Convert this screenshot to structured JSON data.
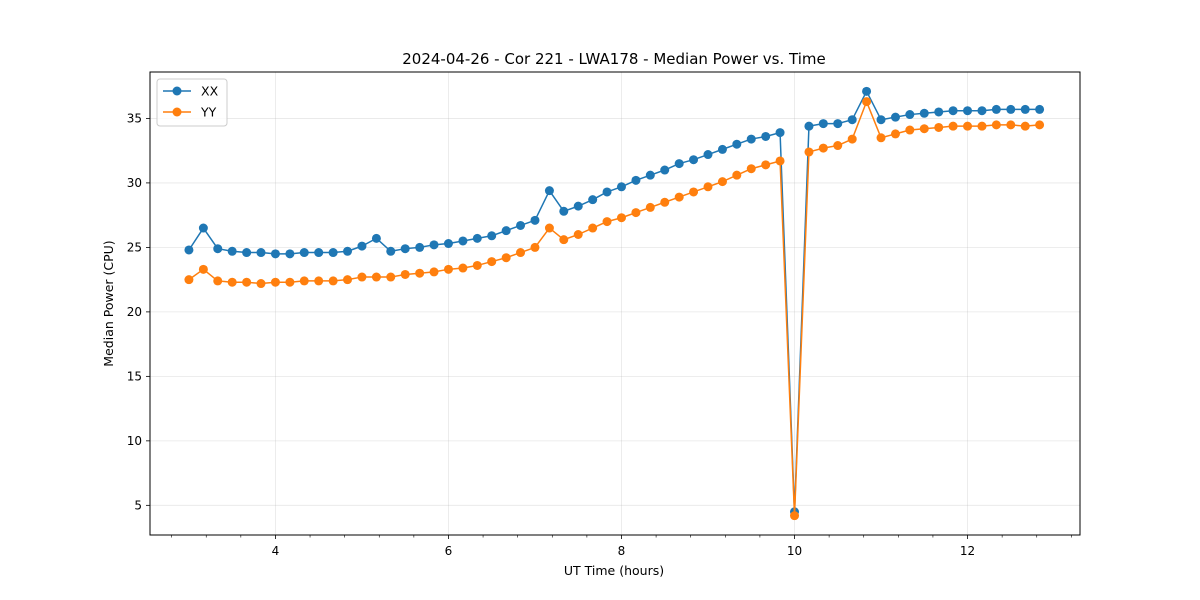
{
  "chart_data": {
    "type": "line",
    "title": "2024-04-26 - Cor 221 - LWA178 - Median Power vs. Time",
    "xlabel": "UT Time (hours)",
    "ylabel": "Median Power (CPU)",
    "xlim": [
      2.55,
      13.3
    ],
    "ylim": [
      2.7,
      38.6
    ],
    "xticks": [
      4,
      6,
      8,
      10,
      12
    ],
    "xtick_labels": [
      "4",
      "6",
      "8",
      "10",
      "12"
    ],
    "xminor_step": 0.4,
    "yticks": [
      5,
      10,
      15,
      20,
      25,
      30,
      35
    ],
    "ytick_labels": [
      "5",
      "10",
      "15",
      "20",
      "25",
      "30",
      "35"
    ],
    "grid": true,
    "legend_position": "top-left",
    "x": [
      3.0,
      3.167,
      3.333,
      3.5,
      3.667,
      3.833,
      4.0,
      4.167,
      4.333,
      4.5,
      4.667,
      4.833,
      5.0,
      5.167,
      5.333,
      5.5,
      5.667,
      5.833,
      6.0,
      6.167,
      6.333,
      6.5,
      6.667,
      6.833,
      7.0,
      7.167,
      7.333,
      7.5,
      7.667,
      7.833,
      8.0,
      8.167,
      8.333,
      8.5,
      8.667,
      8.833,
      9.0,
      9.167,
      9.333,
      9.5,
      9.667,
      9.833,
      10.0,
      10.167,
      10.333,
      10.5,
      10.667,
      10.833,
      11.0,
      11.167,
      11.333,
      11.5,
      11.667,
      11.833,
      12.0,
      12.167,
      12.333,
      12.5,
      12.667,
      12.833
    ],
    "series": [
      {
        "name": "XX",
        "color": "#1f77b4",
        "values": [
          24.8,
          26.5,
          24.9,
          24.7,
          24.6,
          24.6,
          24.5,
          24.5,
          24.6,
          24.6,
          24.6,
          24.7,
          25.1,
          25.7,
          24.7,
          24.9,
          25.0,
          25.2,
          25.3,
          25.5,
          25.7,
          25.9,
          26.3,
          26.7,
          27.1,
          29.4,
          27.8,
          28.2,
          28.7,
          29.3,
          29.7,
          30.2,
          30.6,
          31.0,
          31.5,
          31.8,
          32.2,
          32.6,
          33.0,
          33.4,
          33.6,
          33.9,
          4.5,
          34.4,
          34.6,
          34.6,
          34.9,
          37.1,
          34.9,
          35.1,
          35.3,
          35.4,
          35.5,
          35.6,
          35.6,
          35.6,
          35.7,
          35.7,
          35.7,
          35.7
        ]
      },
      {
        "name": "YY",
        "color": "#ff7f0e",
        "values": [
          22.5,
          23.3,
          22.4,
          22.3,
          22.3,
          22.2,
          22.3,
          22.3,
          22.4,
          22.4,
          22.4,
          22.5,
          22.7,
          22.7,
          22.7,
          22.9,
          23.0,
          23.1,
          23.3,
          23.4,
          23.6,
          23.9,
          24.2,
          24.6,
          25.0,
          26.5,
          25.6,
          26.0,
          26.5,
          27.0,
          27.3,
          27.7,
          28.1,
          28.5,
          28.9,
          29.3,
          29.7,
          30.1,
          30.6,
          31.1,
          31.4,
          31.7,
          4.2,
          32.4,
          32.7,
          32.9,
          33.4,
          36.3,
          33.5,
          33.8,
          34.1,
          34.2,
          34.3,
          34.4,
          34.4,
          34.4,
          34.5,
          34.5,
          34.4,
          34.5
        ]
      }
    ]
  }
}
